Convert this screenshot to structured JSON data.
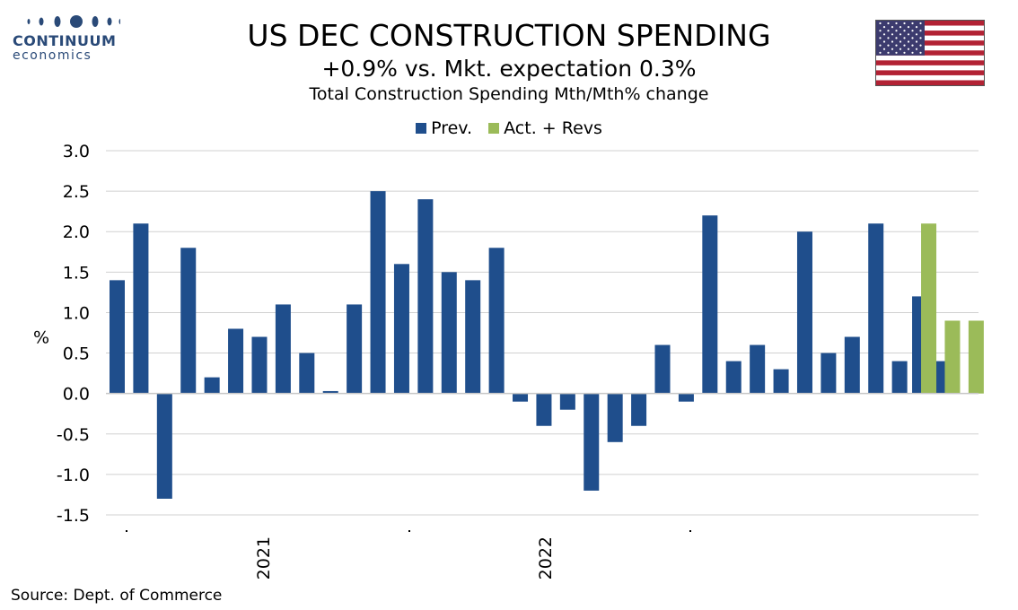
{
  "logo": {
    "line1": "CONTINUUM",
    "line2": "economics"
  },
  "title": "US DEC CONSTRUCTION SPENDING",
  "subtitle": "+0.9% vs. Mkt. expectation 0.3%",
  "subtitle2": "Total Construction Spending Mth/Mth% change",
  "source": "Source: Dept. of Commerce",
  "colors": {
    "prev": "#1f4e8c",
    "act": "#9bbb59",
    "grid": "#d0d0d0",
    "logo": "#2a4a78"
  },
  "chart_data": {
    "type": "bar",
    "ylabel": "%",
    "ylim": [
      -1.5,
      3.0
    ],
    "yticks": [
      "3.0",
      "2.5",
      "2.0",
      "1.5",
      "1.0",
      "0.5",
      "0.0",
      "-0.5",
      "-1.0",
      "-1.5"
    ],
    "ytick_values": [
      3.0,
      2.5,
      2.0,
      1.5,
      1.0,
      0.5,
      0.0,
      -0.5,
      -1.0,
      -1.5
    ],
    "x_labels": [
      "2021",
      "2022"
    ],
    "legend_position": "top-center",
    "grid": true,
    "series": [
      {
        "name": "Prev.",
        "values": [
          1.4,
          2.1,
          -1.3,
          1.8,
          0.2,
          0.8,
          0.7,
          1.1,
          0.5,
          0.03,
          1.1,
          2.5,
          1.6,
          2.4,
          1.5,
          1.4,
          1.8,
          -0.1,
          -0.4,
          -0.2,
          -1.2,
          -0.6,
          -0.4,
          0.6,
          -0.1,
          2.2,
          0.4,
          0.6,
          0.3,
          2.0,
          0.5,
          0.7,
          2.1,
          0.4,
          1.2,
          0.4,
          null
        ]
      },
      {
        "name": "Act. + Revs",
        "values": [
          null,
          null,
          null,
          null,
          null,
          null,
          null,
          null,
          null,
          null,
          null,
          null,
          null,
          null,
          null,
          null,
          null,
          null,
          null,
          null,
          null,
          null,
          null,
          null,
          null,
          null,
          null,
          null,
          null,
          null,
          null,
          null,
          null,
          null,
          2.1,
          0.9,
          0.9
        ]
      }
    ]
  }
}
